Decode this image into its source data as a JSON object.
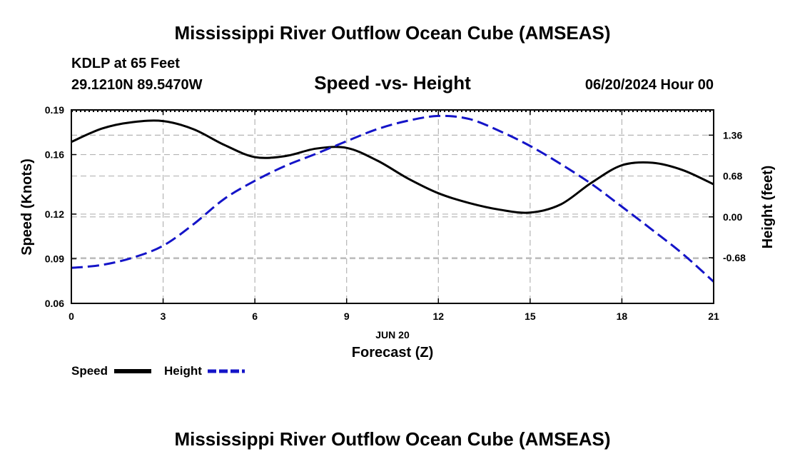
{
  "page": {
    "title": "Mississippi River Outflow Ocean Cube (AMSEAS)",
    "footer_title": "Mississippi River Outflow Ocean Cube (AMSEAS)",
    "station": "KDLP at 65 Feet",
    "coords": "29.1210N  89.5470W",
    "date": "06/20/2024 Hour 00"
  },
  "colors": {
    "speed": "#000000",
    "height": "#1414c8",
    "grid": "#b4b4b4"
  },
  "chart_data": {
    "type": "line",
    "title": "Speed -vs- Height",
    "xlabel": "Forecast (Z)",
    "x_date_label": "JUN 20",
    "ylabel": "Speed (Knots)",
    "y2label": "Height (feet)",
    "xlim": [
      0,
      21
    ],
    "ylim": [
      0.06,
      0.19
    ],
    "y2lim": [
      -1.44,
      1.78
    ],
    "x_ticks": [
      "0",
      "3",
      "6",
      "9",
      "12",
      "15",
      "18",
      "21"
    ],
    "y_ticks": [
      "0.06",
      "0.09",
      "0.12",
      "0.16",
      "0.19"
    ],
    "y2_ticks": [
      "-0.68",
      "0.00",
      "0.68",
      "1.36"
    ],
    "series": [
      {
        "name": "Speed",
        "axis": "left",
        "style": "solid",
        "x": [
          0,
          1,
          2,
          3,
          4,
          5,
          6,
          7,
          8,
          9,
          10,
          11,
          12,
          13,
          14,
          15,
          16,
          17,
          18,
          19,
          20,
          21
        ],
        "values": [
          0.1685,
          0.1775,
          0.1818,
          0.1825,
          0.177,
          0.1665,
          0.1583,
          0.159,
          0.164,
          0.1645,
          0.156,
          0.144,
          0.134,
          0.1275,
          0.123,
          0.121,
          0.1265,
          0.141,
          0.1528,
          0.1545,
          0.1495,
          0.14
        ]
      },
      {
        "name": "Height",
        "axis": "right",
        "style": "dashed",
        "x": [
          0,
          1,
          2,
          3,
          4,
          5,
          6,
          7,
          8,
          9,
          10,
          11,
          12,
          13,
          14,
          15,
          16,
          17,
          18,
          19,
          20,
          21
        ],
        "values": [
          -0.85,
          -0.8,
          -0.68,
          -0.48,
          -0.12,
          0.3,
          0.6,
          0.85,
          1.05,
          1.26,
          1.46,
          1.6,
          1.68,
          1.63,
          1.43,
          1.18,
          0.88,
          0.55,
          0.17,
          -0.22,
          -0.62,
          -1.08
        ]
      }
    ],
    "legend": [
      "Speed",
      "Height"
    ]
  }
}
